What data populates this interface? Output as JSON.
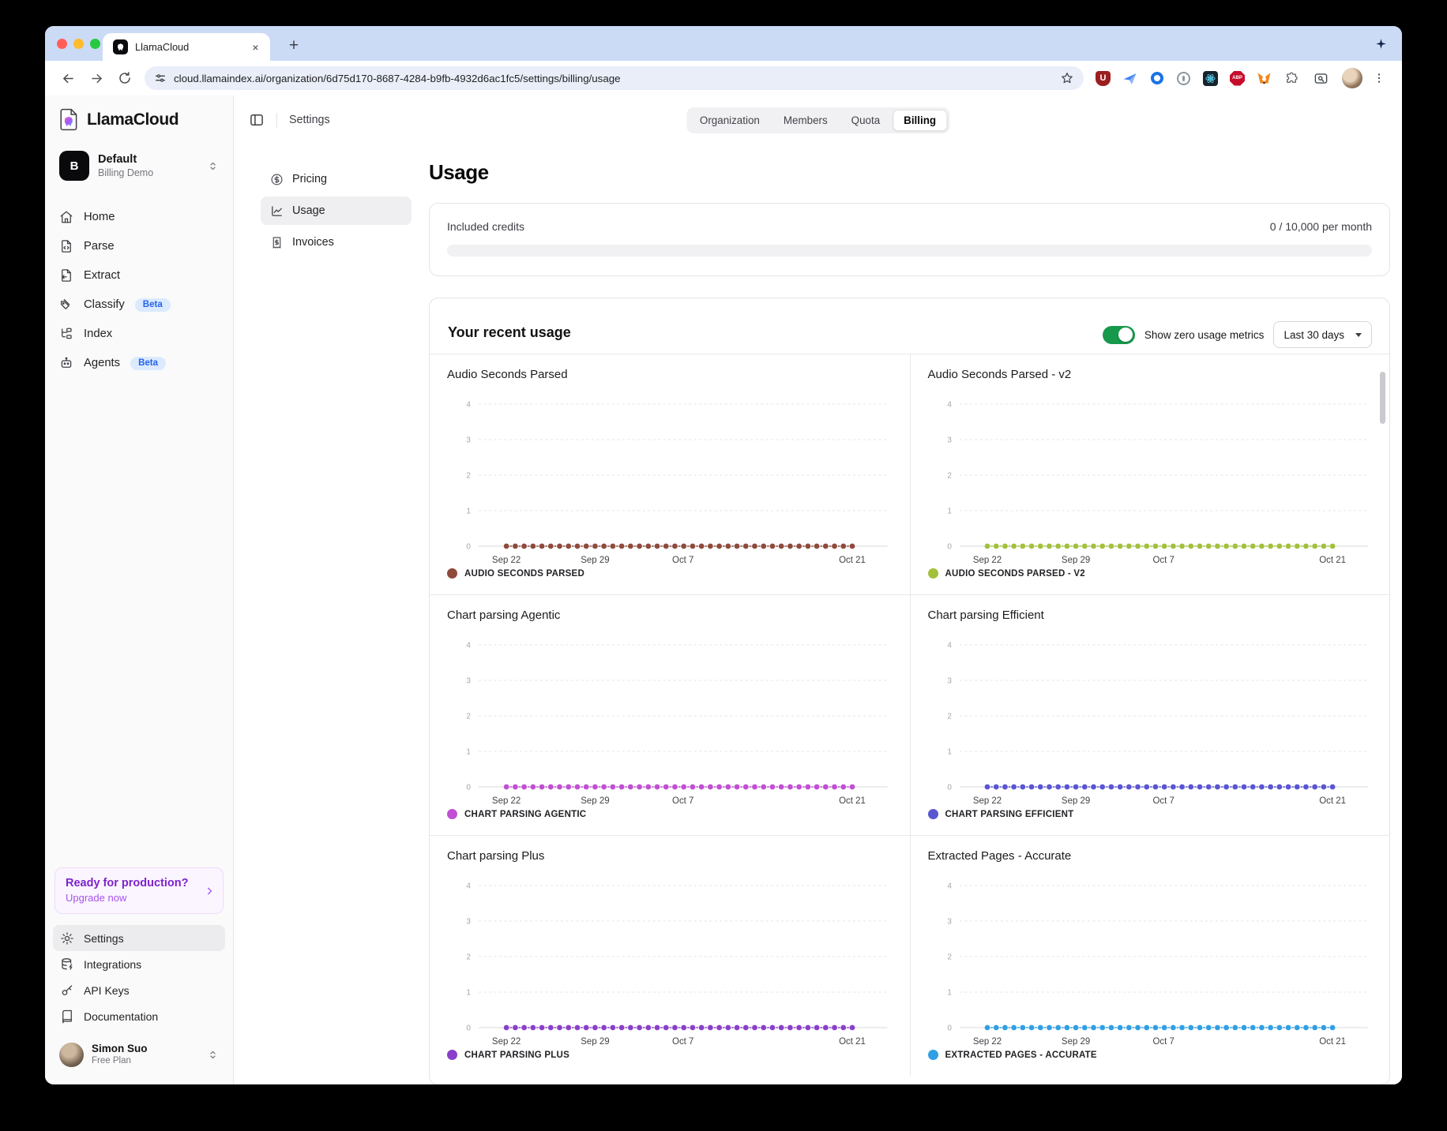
{
  "browser": {
    "tab": {
      "title": "LlamaCloud"
    },
    "new_tab_label": "+",
    "url": "cloud.llamaindex.ai/organization/6d75d170-8687-4284-b9fb-4932d6ac1fc5/settings/billing/usage",
    "traffic_light_colors": {
      "close": "#ff5f57",
      "minimize": "#febc2e",
      "zoom": "#28c840"
    },
    "extensions": [
      {
        "name": "ublock-extension-icon",
        "color": "#9b1f1f",
        "glyph": "U"
      },
      {
        "name": "paper-plane-extension-icon",
        "color": "#4285f4",
        "glyph": ""
      },
      {
        "name": "ring-extension-icon",
        "color": "#1a73e8",
        "glyph": ""
      },
      {
        "name": "onepassword-extension-icon",
        "color": "#8f97a3",
        "glyph": ""
      },
      {
        "name": "react-devtools-extension-icon",
        "color": "#15232d",
        "glyph": "atom"
      },
      {
        "name": "adblock-plus-extension-icon",
        "color": "#c70d2c",
        "glyph": "ABP"
      },
      {
        "name": "metamask-extension-icon",
        "color": "#f6851b",
        "glyph": ""
      },
      {
        "name": "extensions-puzzle-icon",
        "color": "#5f6368",
        "glyph": ""
      }
    ]
  },
  "sidebar": {
    "logo_text": "LlamaCloud",
    "org": {
      "initial": "B",
      "name": "Default",
      "subtitle": "Billing Demo"
    },
    "nav": [
      {
        "label": "Home",
        "icon": "home"
      },
      {
        "label": "Parse",
        "icon": "parse"
      },
      {
        "label": "Extract",
        "icon": "extract"
      },
      {
        "label": "Classify",
        "icon": "classify",
        "badge": "Beta"
      },
      {
        "label": "Index",
        "icon": "index"
      },
      {
        "label": "Agents",
        "icon": "agents",
        "badge": "Beta"
      }
    ],
    "upgrade": {
      "title": "Ready for production?",
      "link": "Upgrade now"
    },
    "bottom_nav": [
      {
        "label": "Settings",
        "icon": "settings",
        "active": true
      },
      {
        "label": "Integrations",
        "icon": "integrations"
      },
      {
        "label": "API Keys",
        "icon": "api-keys"
      },
      {
        "label": "Documentation",
        "icon": "documentation"
      }
    ],
    "user": {
      "name": "Simon Suo",
      "plan": "Free Plan"
    }
  },
  "header": {
    "breadcrumb": "Settings",
    "tabs": [
      {
        "label": "Organization"
      },
      {
        "label": "Members"
      },
      {
        "label": "Quota"
      },
      {
        "label": "Billing",
        "active": true
      }
    ]
  },
  "settings_nav": [
    {
      "label": "Pricing",
      "icon": "pricing"
    },
    {
      "label": "Usage",
      "icon": "usage",
      "active": true
    },
    {
      "label": "Invoices",
      "icon": "invoices"
    }
  ],
  "main": {
    "title": "Usage",
    "included_credits": {
      "label": "Included credits",
      "value": "0 / 10,000 per month",
      "progress_pct": 0
    },
    "recent_usage": {
      "title": "Your recent usage",
      "toggle_label": "Show zero usage metrics",
      "toggle_on": true,
      "toggle_color": "#17994c",
      "range_label": "Last 30 days",
      "y_ticks": [
        "4",
        "3",
        "2",
        "1",
        "0"
      ],
      "x_ticks": [
        "Sep 22",
        "Sep 29",
        "Oct 7",
        "Oct 21"
      ],
      "charts": [
        {
          "title": "Audio Seconds Parsed",
          "legend": "AUDIO SECONDS PARSED",
          "color": "#8e4a3c"
        },
        {
          "title": "Audio Seconds Parsed - v2",
          "legend": "AUDIO SECONDS PARSED - V2",
          "color": "#a2c13b"
        },
        {
          "title": "Chart parsing Agentic",
          "legend": "CHART PARSING AGENTIC",
          "color": "#c14fd4"
        },
        {
          "title": "Chart parsing Efficient",
          "legend": "CHART PARSING EFFICIENT",
          "color": "#5a55d2"
        },
        {
          "title": "Chart parsing Plus",
          "legend": "CHART PARSING PLUS",
          "color": "#8a3fc9"
        },
        {
          "title": "Extracted Pages - Accurate",
          "legend": "EXTRACTED PAGES - ACCURATE",
          "color": "#309fe4"
        }
      ]
    }
  },
  "chart_data": {
    "type": "line",
    "ylim": [
      0,
      4
    ],
    "x_ticks": [
      "Sep 22",
      "Sep 29",
      "Oct 7",
      "Oct 21"
    ],
    "x_range": [
      "Sep 22",
      "Oct 21"
    ],
    "points_per_series": 40,
    "series": [
      {
        "name": "AUDIO SECONDS PARSED",
        "constant_value": 0
      },
      {
        "name": "AUDIO SECONDS PARSED - V2",
        "constant_value": 0
      },
      {
        "name": "CHART PARSING AGENTIC",
        "constant_value": 0
      },
      {
        "name": "CHART PARSING EFFICIENT",
        "constant_value": 0
      },
      {
        "name": "CHART PARSING PLUS",
        "constant_value": 0
      },
      {
        "name": "EXTRACTED PAGES - ACCURATE",
        "constant_value": 0
      }
    ]
  }
}
